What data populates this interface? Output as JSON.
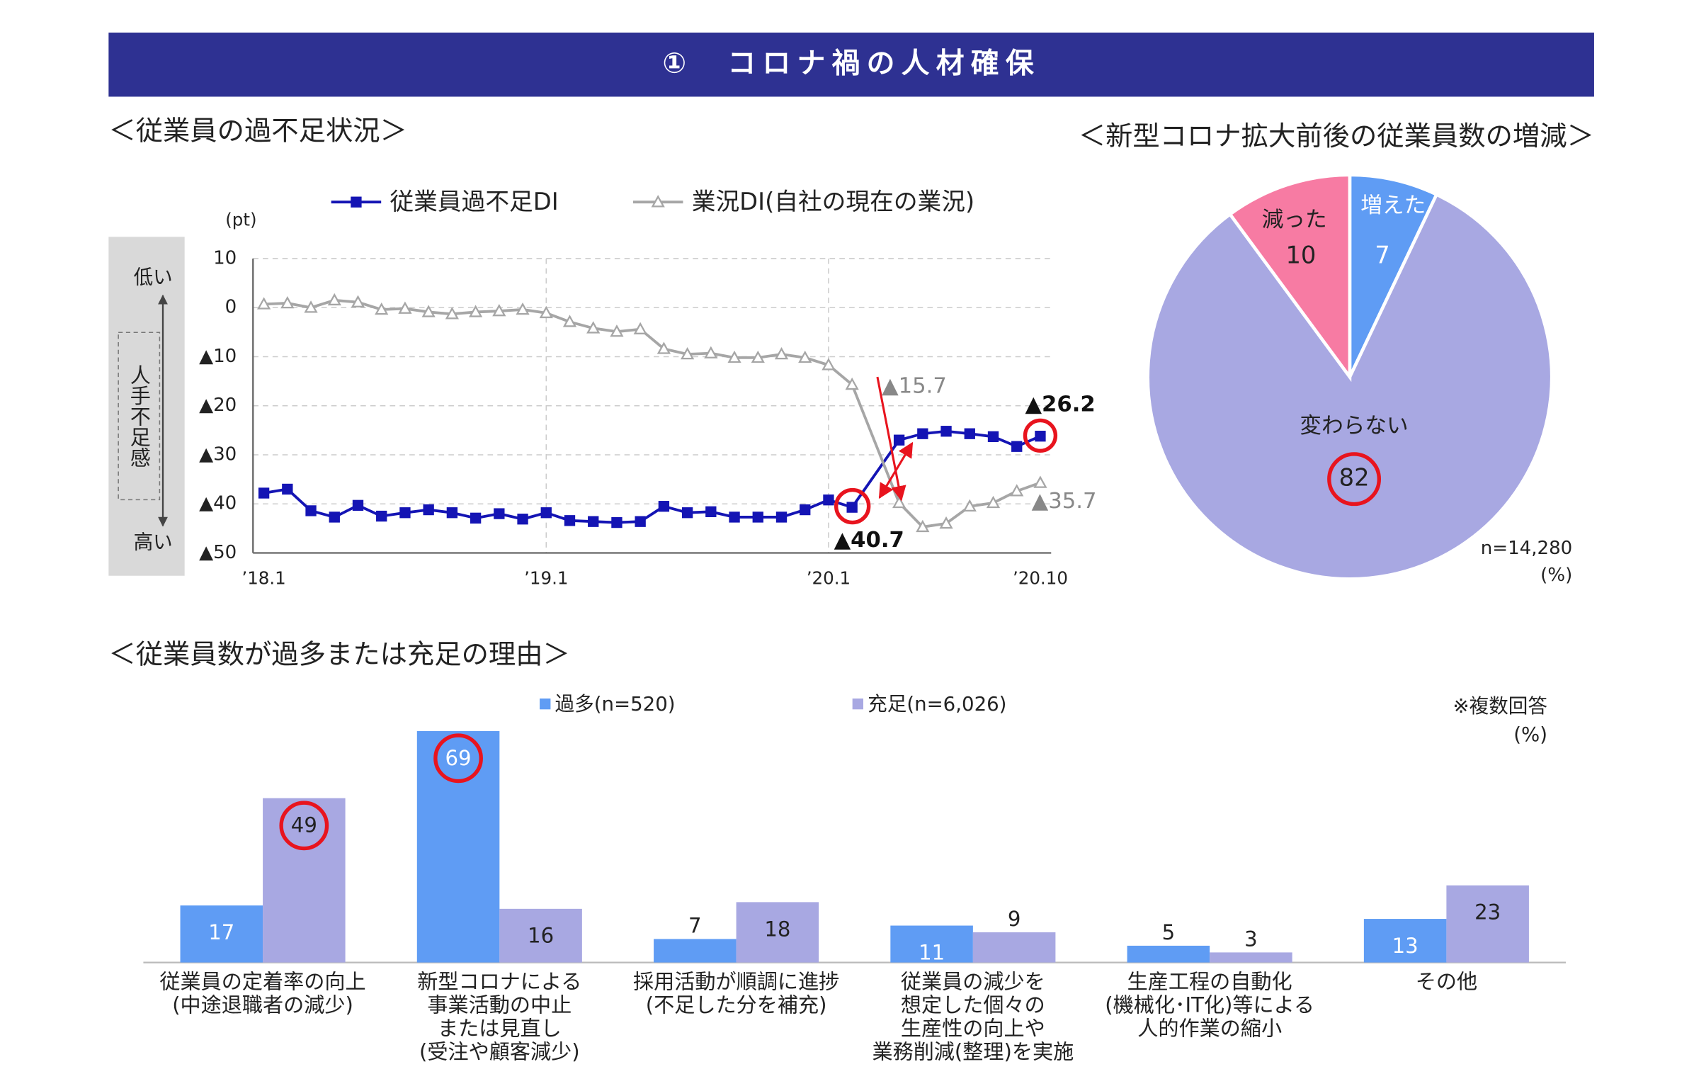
{
  "header": {
    "title": "①　コロナ禍の人材確保"
  },
  "chart_data": [
    {
      "type": "line",
      "title": "＜従業員の過不足状況＞",
      "y_label": "(pt)",
      "side_labels": {
        "top": "低い",
        "middle": "人手不足感",
        "bottom": "高い"
      },
      "categories": [
        "’18.1",
        null,
        null,
        null,
        null,
        null,
        null,
        null,
        null,
        null,
        null,
        null,
        "’19.1",
        null,
        null,
        null,
        null,
        null,
        null,
        null,
        null,
        null,
        null,
        null,
        "’20.1",
        null,
        null,
        null,
        null,
        null,
        null,
        null,
        null,
        "’20.10"
      ],
      "series": [
        {
          "name": "従業員過不足DI",
          "color": "#1414b4",
          "marker": "square",
          "values": [
            -37.8,
            -37,
            -41.4,
            -42.7,
            -40.3,
            -42.5,
            -41.8,
            -41.2,
            -41.8,
            -42.9,
            -42,
            -43.1,
            -41.8,
            -43.4,
            -43.6,
            -43.8,
            -43.6,
            -40.5,
            -41.8,
            -41.6,
            -42.7,
            -42.7,
            -42.7,
            -41.2,
            -39.2,
            -40.7,
            null,
            -27,
            -25.7,
            -25.2,
            -25.7,
            -26.3,
            -28.3,
            -26.2
          ]
        },
        {
          "name": "業況DI(自社の現在の業況)",
          "color": "#a6a6a6",
          "marker": "triangle",
          "values": [
            0.7,
            0.9,
            0,
            1.5,
            1.1,
            -0.4,
            -0.2,
            -0.9,
            -1.3,
            -0.9,
            -0.7,
            -0.4,
            -1.1,
            -2.9,
            -4.2,
            -4.9,
            -4.4,
            -8.4,
            -9.5,
            -9.3,
            -10.2,
            -10.2,
            -9.5,
            -10.2,
            -11.7,
            -15.7,
            null,
            -39.8,
            -44.7,
            -44,
            -40.5,
            -39.8,
            -37.4,
            -35.7
          ]
        }
      ],
      "ylim": [
        -50,
        10
      ],
      "yticks": [
        10,
        0,
        {
          "value": -10,
          "label": "▲10"
        },
        {
          "value": -20,
          "label": "▲20"
        },
        {
          "value": -30,
          "label": "▲30"
        },
        {
          "value": -40,
          "label": "▲40"
        },
        {
          "value": -50,
          "label": "▲50"
        }
      ],
      "grid": true,
      "annotations": [
        "▲15.7",
        "▲26.2",
        "▲35.7",
        "▲40.7"
      ]
    },
    {
      "type": "pie",
      "title": "＜新型コロナ拡大前後の従業員数の増減＞",
      "categories": [
        "増えた",
        "変わらない",
        "減った"
      ],
      "values": [
        7,
        82,
        10
      ],
      "colors": [
        "#5f9cf4",
        "#a8a8e2",
        "#f77ba3"
      ],
      "note": "n=14,280",
      "unit": "(%)"
    },
    {
      "type": "bar",
      "title": "＜従業員数が過多または充足の理由＞",
      "categories": [
        [
          "従業員の定着率の向上",
          "(中途退職者の減少)"
        ],
        [
          "新型コロナによる",
          "事業活動の中止",
          "または見直し",
          "(受注や顧客減少)"
        ],
        [
          "採用活動が順調に進捗",
          "(不足した分を補充)"
        ],
        [
          "従業員の減少を",
          "想定した個々の",
          "生産性の向上や",
          "業務削減(整理)を実施"
        ],
        [
          "生産工程の自動化",
          "(機械化･IT化)等による",
          "人的作業の縮小"
        ],
        [
          "その他"
        ]
      ],
      "series": [
        {
          "name": "過多(n=520)",
          "color": "#5f9cf4",
          "values": [
            17,
            69,
            7,
            11,
            5,
            13
          ]
        },
        {
          "name": "充足(n=6,026)",
          "color": "#a8a8e2",
          "values": [
            49,
            16,
            18,
            9,
            3,
            23
          ]
        }
      ],
      "note": "※複数回答",
      "unit": "(%)"
    }
  ]
}
